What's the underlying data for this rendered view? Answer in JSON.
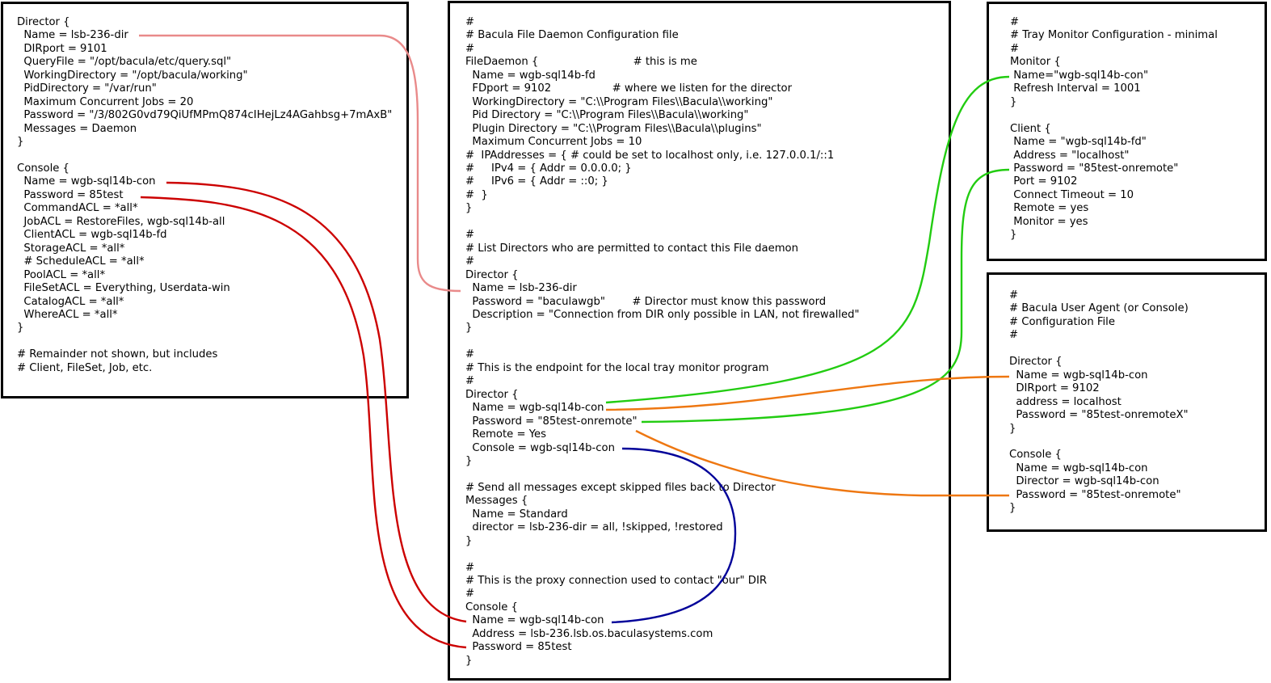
{
  "colors": {
    "director_link": "#e98a8a",
    "console_password_link": "#cc0000",
    "tray_monitor_link": "#22cc11",
    "bat_link": "#ee7711",
    "console_name_link": "#000099"
  },
  "director_config": {
    "lines": [
      "Director {",
      "  Name = lsb-236-dir",
      "  DIRport = 9101",
      "  QueryFile = \"/opt/bacula/etc/query.sql\"",
      "  WorkingDirectory = \"/opt/bacula/working\"",
      "  PidDirectory = \"/var/run\"",
      "  Maximum Concurrent Jobs = 20",
      "  Password = \"/3/802G0vd79QiUfMPmQ874cIHejLz4AGahbsg+7mAxB\"",
      "  Messages = Daemon",
      "}",
      "",
      "Console {",
      "  Name = wgb-sql14b-con",
      "  Password = 85test",
      "  CommandACL = *all*",
      "  JobACL = RestoreFiles, wgb-sql14b-all",
      "  ClientACL = wgb-sql14b-fd",
      "  StorageACL = *all*",
      "  # ScheduleACL = *all*",
      "  PoolACL = *all*",
      "  FileSetACL = Everything, Userdata-win",
      "  CatalogACL = *all*",
      "  WhereACL = *all*",
      "}",
      "",
      "# Remainder not shown, but includes",
      "# Client, FileSet, Job, etc."
    ]
  },
  "file_daemon_config": {
    "lines": [
      "#",
      "# Bacula File Daemon Configuration file",
      "#",
      "FileDaemon {                            # this is me",
      "  Name = wgb-sql14b-fd",
      "  FDport = 9102                  # where we listen for the director",
      "  WorkingDirectory = \"C:\\\\Program Files\\\\Bacula\\\\working\"",
      "  Pid Directory = \"C:\\\\Program Files\\\\Bacula\\\\working\"",
      "  Plugin Directory = \"C:\\\\Program Files\\\\Bacula\\\\plugins\"",
      "  Maximum Concurrent Jobs = 10",
      "#  IPAddresses = { # could be set to localhost only, i.e. 127.0.0.1/::1",
      "#     IPv4 = { Addr = 0.0.0.0; }",
      "#     IPv6 = { Addr = ::0; }",
      "#  }",
      "}",
      "",
      "#",
      "# List Directors who are permitted to contact this File daemon",
      "#",
      "Director {",
      "  Name = lsb-236-dir",
      "  Password = \"baculawgb\"        # Director must know this password",
      "  Description = \"Connection from DIR only possible in LAN, not firewalled\"",
      "}",
      "",
      "#",
      "# This is the endpoint for the local tray monitor program",
      "#",
      "Director {",
      "  Name = wgb-sql14b-con",
      "  Password = \"85test-onremote\"",
      "  Remote = Yes",
      "  Console = wgb-sql14b-con",
      "}",
      "",
      "# Send all messages except skipped files back to Director",
      "Messages {",
      "  Name = Standard",
      "  director = lsb-236-dir = all, !skipped, !restored",
      "}",
      "",
      "#",
      "# This is the proxy connection used to contact \"our\" DIR",
      "#",
      "Console {",
      "  Name = wgb-sql14b-con",
      "  Address = lsb-236.lsb.os.baculasystems.com",
      "  Password = 85test",
      "}"
    ]
  },
  "tray_monitor_config": {
    "lines": [
      "#",
      "# Tray Monitor Configuration - minimal",
      "#",
      "Monitor {",
      " Name=\"wgb-sql14b-con\"",
      " Refresh Interval = 1001",
      "}",
      "",
      "Client {",
      " Name = \"wgb-sql14b-fd\"",
      " Address = \"localhost\"",
      " Password = \"85test-onremote\"",
      " Port = 9102",
      " Connect Timeout = 10",
      " Remote = yes",
      " Monitor = yes",
      "}"
    ]
  },
  "user_agent_config": {
    "lines": [
      "#",
      "# Bacula User Agent (or Console)",
      "# Configuration File",
      "#",
      "",
      "Director {",
      "  Name = wgb-sql14b-con",
      "  DIRport = 9102",
      "  address = localhost",
      "  Password = \"85test-onremoteX\"",
      "}",
      "",
      "Console {",
      "  Name = wgb-sql14b-con",
      "  Director = wgb-sql14b-con",
      "  Password = \"85test-onremote\"",
      "}"
    ]
  }
}
